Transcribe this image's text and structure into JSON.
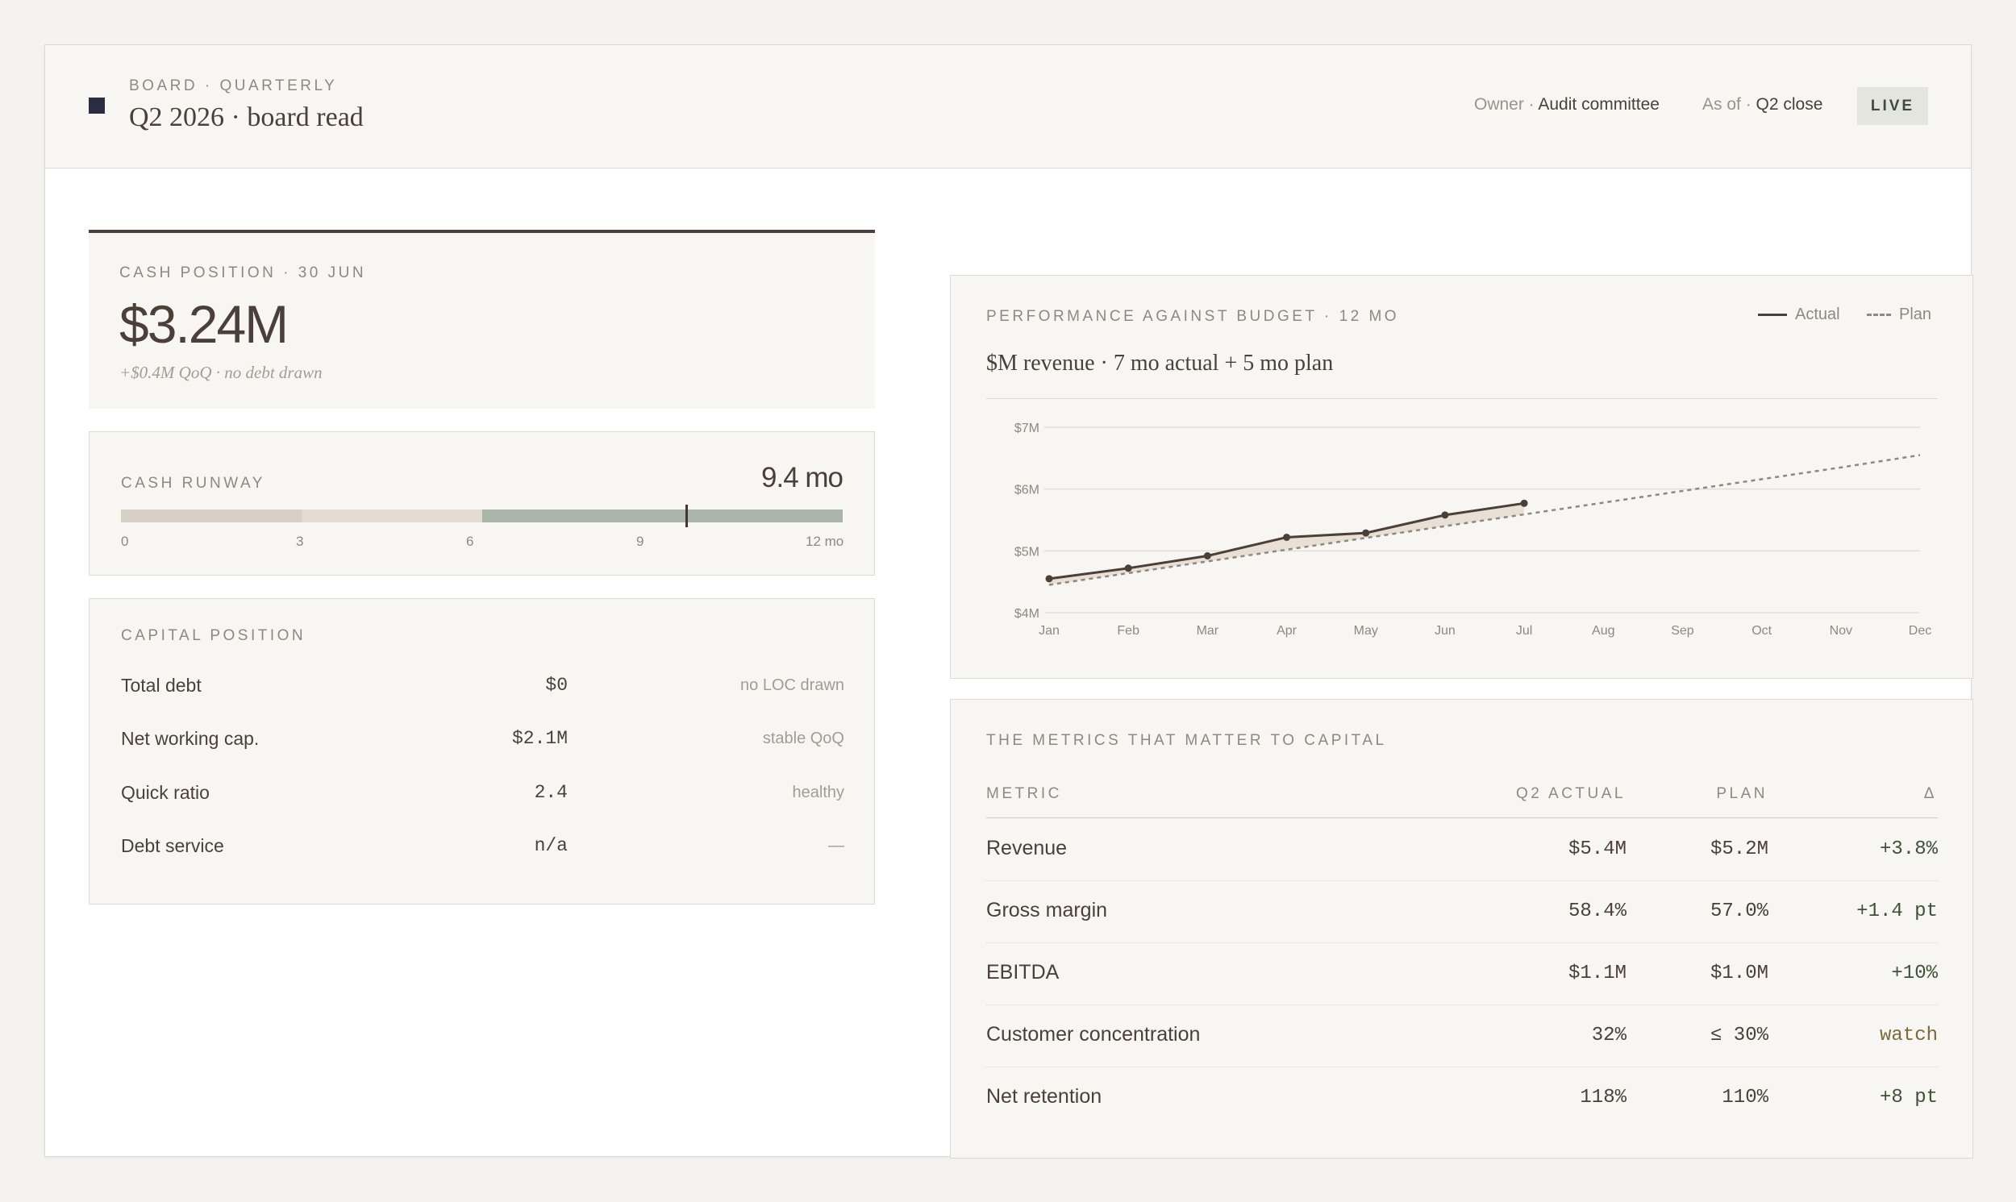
{
  "header": {
    "eyebrow": "BOARD · QUARTERLY",
    "title": "Q2 2026 · board read",
    "owner_label": "Owner ·",
    "owner_value": "Audit committee",
    "asof_label": "As of ·",
    "asof_value": "Q2 close",
    "status": "LIVE"
  },
  "cash": {
    "label": "CASH POSITION · 30 JUN",
    "value": "$3.24M",
    "subtitle": "+$0.4M QoQ · no debt drawn"
  },
  "runway": {
    "label": "CASH RUNWAY",
    "value": "9.4 mo",
    "months": 9.4,
    "max_months": 12,
    "ticks": [
      "0",
      "3",
      "6",
      "9",
      "12 mo"
    ]
  },
  "capital": {
    "label": "CAPITAL POSITION",
    "rows": [
      {
        "name": "Total debt",
        "value": "$0",
        "note": "no LOC drawn"
      },
      {
        "name": "Net working cap.",
        "value": "$2.1M",
        "note": "stable QoQ"
      },
      {
        "name": "Quick ratio",
        "value": "2.4",
        "note": "healthy"
      },
      {
        "name": "Debt service",
        "value": "n/a",
        "note": "—"
      }
    ]
  },
  "chart": {
    "label": "PERFORMANCE AGAINST BUDGET · 12 MO",
    "title": "$M revenue · 7 mo actual + 5 mo plan",
    "legend_actual": "Actual",
    "legend_plan": "Plan",
    "colors": {
      "actual": "#4a3f39",
      "plan": "#8f8880",
      "fill": "#e6ddd1",
      "grid": "#e2ded7"
    }
  },
  "chart_data": {
    "type": "line",
    "title": "$M revenue · 7 mo actual + 5 mo plan",
    "categories": [
      "Jan",
      "Feb",
      "Mar",
      "Apr",
      "May",
      "Jun",
      "Jul",
      "Aug",
      "Sep",
      "Oct",
      "Nov",
      "Dec"
    ],
    "y_ticks": [
      "$4M",
      "$5M",
      "$6M",
      "$7M"
    ],
    "ylim": [
      4,
      7
    ],
    "grid": true,
    "legend": "top-right",
    "series": [
      {
        "name": "Actual",
        "values": [
          4.55,
          4.72,
          4.92,
          5.22,
          5.29,
          5.58,
          5.77,
          null,
          null,
          null,
          null,
          null
        ]
      },
      {
        "name": "Plan",
        "values": [
          4.45,
          4.64,
          4.83,
          5.02,
          5.21,
          5.4,
          5.59,
          5.78,
          5.97,
          6.16,
          6.35,
          6.55
        ]
      }
    ]
  },
  "metrics": {
    "label": "THE METRICS THAT MATTER TO CAPITAL",
    "headers": {
      "metric": "METRIC",
      "actual": "Q2 ACTUAL",
      "plan": "PLAN",
      "delta": "Δ"
    },
    "rows": [
      {
        "name": "Revenue",
        "actual": "$5.4M",
        "plan": "$5.2M",
        "delta": "+3.8%"
      },
      {
        "name": "Gross margin",
        "actual": "58.4%",
        "plan": "57.0%",
        "delta": "+1.4 pt"
      },
      {
        "name": "EBITDA",
        "actual": "$1.1M",
        "plan": "$1.0M",
        "delta": "+10%"
      },
      {
        "name": "Customer concentration",
        "actual": "32%",
        "plan": "≤ 30%",
        "delta": "watch"
      },
      {
        "name": "Net retention",
        "actual": "118%",
        "plan": "110%",
        "delta": "+8 pt"
      }
    ]
  }
}
